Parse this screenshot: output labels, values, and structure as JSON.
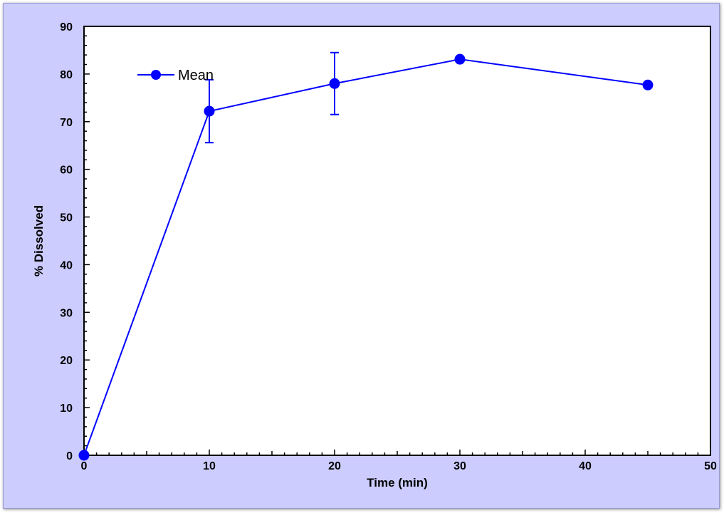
{
  "chart_data": {
    "type": "line",
    "title": "",
    "xlabel": "Time (min)",
    "ylabel": "% Dissolved",
    "xlim": [
      0,
      50
    ],
    "ylim": [
      0,
      90
    ],
    "x_ticks": [
      0,
      10,
      20,
      30,
      40,
      50
    ],
    "y_ticks": [
      0,
      10,
      20,
      30,
      40,
      50,
      60,
      70,
      80,
      90
    ],
    "grid": false,
    "legend_position": "top-left",
    "series": [
      {
        "name": "Mean",
        "color": "#0000ff",
        "points": [
          {
            "x": 0,
            "y": 0
          },
          {
            "x": 10,
            "y": 72.2,
            "err": 6.6
          },
          {
            "x": 20,
            "y": 78,
            "err": 6.5
          },
          {
            "x": 30,
            "y": 83.1
          },
          {
            "x": 45,
            "y": 77.7
          }
        ]
      }
    ]
  },
  "colors": {
    "background": "#ccccff",
    "plot_background": "#ffffff",
    "axis": "#000000"
  }
}
